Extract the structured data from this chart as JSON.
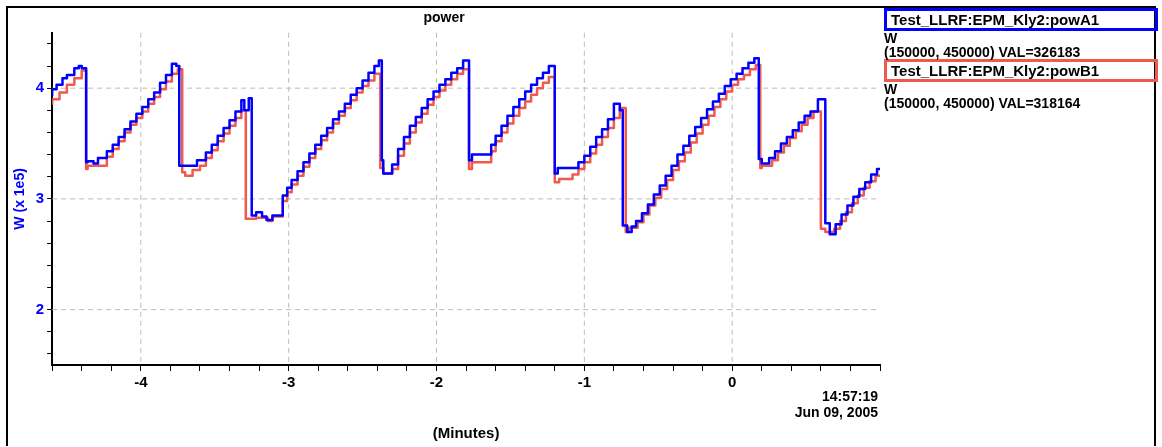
{
  "chart_data": {
    "type": "step",
    "title": "power",
    "xlabel": "(Minutes)",
    "ylabel": "W (x 1e5)",
    "xlim": [
      -4.6,
      1.0
    ],
    "ylim": [
      1.5,
      4.5
    ],
    "xticks": [
      {
        "value": -4.6,
        "label": null
      },
      {
        "value": -4.4,
        "label": null
      },
      {
        "value": -4.2,
        "label": null
      },
      -4,
      {
        "value": -3.8,
        "label": null
      },
      {
        "value": -3.6,
        "label": null
      },
      {
        "value": -3.4,
        "label": null
      },
      {
        "value": -3.2,
        "label": null
      },
      -3,
      {
        "value": -2.8,
        "label": null
      },
      {
        "value": -2.6,
        "label": null
      },
      {
        "value": -2.4,
        "label": null
      },
      {
        "value": -2.2,
        "label": null
      },
      -2,
      {
        "value": -1.8,
        "label": null
      },
      {
        "value": -1.6,
        "label": null
      },
      {
        "value": -1.4,
        "label": null
      },
      {
        "value": -1.2,
        "label": null
      },
      -1,
      {
        "value": -0.8,
        "label": null
      },
      {
        "value": -0.6,
        "label": null
      },
      {
        "value": -0.4,
        "label": null
      },
      {
        "value": -0.2,
        "label": null
      },
      0,
      {
        "value": 0.2,
        "label": null
      },
      {
        "value": 0.4,
        "label": null
      },
      {
        "value": 0.6,
        "label": null
      },
      {
        "value": 0.8,
        "label": null
      },
      {
        "value": 1.0,
        "label": null
      }
    ],
    "yticks": [
      {
        "value": 1.6,
        "label": null
      },
      {
        "value": 1.8,
        "label": null
      },
      2,
      {
        "value": 2.2,
        "label": null
      },
      {
        "value": 2.4,
        "label": null
      },
      {
        "value": 2.6,
        "label": null
      },
      {
        "value": 2.8,
        "label": null
      },
      3,
      {
        "value": 3.2,
        "label": null
      },
      {
        "value": 3.4,
        "label": null
      },
      {
        "value": 3.6,
        "label": null
      },
      {
        "value": 3.8,
        "label": null
      },
      4,
      {
        "value": 4.2,
        "label": null
      },
      {
        "value": 4.4,
        "label": null
      }
    ],
    "grid": true,
    "legend": "right",
    "annotations": [
      "W",
      "(150000, 450000) VAL=326183",
      "W",
      "(150000, 450000) VAL=318164",
      "14:57:19",
      "Jun 09, 2005"
    ],
    "series": [
      {
        "name": "Test_LLRF:EPM_Kly2:powA1",
        "color": "#0000ff",
        "x": [
          -4.6,
          -4.57,
          -4.53,
          -4.5,
          -4.45,
          -4.42,
          -4.4,
          -4.37,
          -4.36,
          -4.32,
          -4.29,
          -4.23,
          -4.19,
          -4.15,
          -4.11,
          -4.07,
          -4.03,
          -3.99,
          -3.95,
          -3.91,
          -3.87,
          -3.83,
          -3.79,
          -3.76,
          -3.74,
          -3.7,
          -3.62,
          -3.56,
          -3.52,
          -3.48,
          -3.44,
          -3.4,
          -3.36,
          -3.32,
          -3.3,
          -3.27,
          -3.25,
          -3.22,
          -3.18,
          -3.15,
          -3.11,
          -3.04,
          -3.01,
          -2.98,
          -2.94,
          -2.9,
          -2.86,
          -2.82,
          -2.78,
          -2.74,
          -2.7,
          -2.66,
          -2.62,
          -2.58,
          -2.54,
          -2.5,
          -2.46,
          -2.42,
          -2.39,
          -2.37,
          -2.36,
          -2.3,
          -2.26,
          -2.22,
          -2.18,
          -2.14,
          -2.1,
          -2.06,
          -2.02,
          -1.98,
          -1.94,
          -1.9,
          -1.86,
          -1.82,
          -1.78,
          -1.76,
          -1.63,
          -1.6,
          -1.56,
          -1.52,
          -1.48,
          -1.44,
          -1.4,
          -1.36,
          -1.32,
          -1.28,
          -1.24,
          -1.2,
          -1.18,
          -1.04,
          -1.0,
          -0.96,
          -0.92,
          -0.88,
          -0.84,
          -0.8,
          -0.76,
          -0.74,
          -0.71,
          -0.68,
          -0.65,
          -0.61,
          -0.57,
          -0.53,
          -0.49,
          -0.45,
          -0.41,
          -0.37,
          -0.33,
          -0.29,
          -0.25,
          -0.21,
          -0.17,
          -0.13,
          -0.09,
          -0.05,
          -0.01,
          0.03,
          0.07,
          0.11,
          0.15,
          0.18,
          0.2,
          0.25,
          0.29,
          0.33,
          0.37,
          0.41,
          0.45,
          0.49,
          0.53,
          0.58,
          0.63,
          0.66,
          0.7,
          0.74,
          0.78,
          0.82,
          0.86,
          0.9,
          0.94,
          0.98,
          1.0
        ],
        "values": [
          3.93,
          3.99,
          4.03,
          4.09,
          4.12,
          4.18,
          4.2,
          4.18,
          3.33,
          3.34,
          3.32,
          3.37,
          3.43,
          3.49,
          3.56,
          3.63,
          3.7,
          3.77,
          3.83,
          3.9,
          3.96,
          4.05,
          4.12,
          4.22,
          4.2,
          3.3,
          3.3,
          3.35,
          3.42,
          3.49,
          3.57,
          3.64,
          3.71,
          3.79,
          3.89,
          3.8,
          3.91,
          2.85,
          2.88,
          2.84,
          2.81,
          2.85,
          3.03,
          3.1,
          3.17,
          3.25,
          3.33,
          3.41,
          3.49,
          3.57,
          3.64,
          3.72,
          3.79,
          3.86,
          3.94,
          4.0,
          4.07,
          4.14,
          4.2,
          4.25,
          3.35,
          3.23,
          3.31,
          3.45,
          3.56,
          3.66,
          3.74,
          3.82,
          3.9,
          3.97,
          4.03,
          4.08,
          4.14,
          4.18,
          4.25,
          3.35,
          3.4,
          3.49,
          3.57,
          3.66,
          3.75,
          3.83,
          3.9,
          3.97,
          4.03,
          4.09,
          4.14,
          4.2,
          3.23,
          3.28,
          3.33,
          3.39,
          3.47,
          3.56,
          3.63,
          3.72,
          3.86,
          3.8,
          2.76,
          2.7,
          2.75,
          2.8,
          2.87,
          2.95,
          3.04,
          3.12,
          3.21,
          3.3,
          3.4,
          3.48,
          3.57,
          3.65,
          3.73,
          3.81,
          3.88,
          3.95,
          4.02,
          4.08,
          4.13,
          4.18,
          4.23,
          4.27,
          3.36,
          3.32,
          3.37,
          3.43,
          3.5,
          3.56,
          3.62,
          3.69,
          3.75,
          3.79,
          3.9,
          2.78,
          2.68,
          2.77,
          2.86,
          2.94,
          3.02,
          3.09,
          3.15,
          3.22,
          3.27
        ]
      },
      {
        "name": "Test_LLRF:EPM_Kly2:powB1",
        "color": "#ef5a4f",
        "x": [
          -4.6,
          -4.55,
          -4.5,
          -4.45,
          -4.4,
          -4.37,
          -4.36,
          -4.23,
          -4.19,
          -4.15,
          -4.11,
          -4.07,
          -4.03,
          -3.99,
          -3.95,
          -3.91,
          -3.87,
          -3.83,
          -3.79,
          -3.75,
          -3.72,
          -3.7,
          -3.65,
          -3.6,
          -3.56,
          -3.52,
          -3.48,
          -3.44,
          -3.4,
          -3.36,
          -3.32,
          -3.29,
          -3.22,
          -3.14,
          -3.11,
          -3.04,
          -3.01,
          -2.98,
          -2.94,
          -2.9,
          -2.86,
          -2.82,
          -2.78,
          -2.74,
          -2.7,
          -2.66,
          -2.62,
          -2.58,
          -2.54,
          -2.5,
          -2.46,
          -2.42,
          -2.38,
          -2.36,
          -2.3,
          -2.26,
          -2.22,
          -2.18,
          -2.14,
          -2.1,
          -2.06,
          -2.02,
          -1.98,
          -1.94,
          -1.9,
          -1.86,
          -1.82,
          -1.78,
          -1.76,
          -1.63,
          -1.6,
          -1.56,
          -1.52,
          -1.48,
          -1.44,
          -1.4,
          -1.36,
          -1.32,
          -1.28,
          -1.24,
          -1.2,
          -1.17,
          -1.08,
          -1.04,
          -1.0,
          -0.96,
          -0.92,
          -0.88,
          -0.84,
          -0.8,
          -0.76,
          -0.72,
          -0.7,
          -0.64,
          -0.6,
          -0.56,
          -0.52,
          -0.48,
          -0.44,
          -0.4,
          -0.36,
          -0.32,
          -0.28,
          -0.24,
          -0.2,
          -0.16,
          -0.12,
          -0.08,
          -0.04,
          0.0,
          0.04,
          0.08,
          0.12,
          0.16,
          0.19,
          0.2,
          0.27,
          0.31,
          0.35,
          0.39,
          0.43,
          0.47,
          0.51,
          0.55,
          0.6,
          0.63,
          0.69,
          0.73,
          0.77,
          0.81,
          0.85,
          0.89,
          0.93,
          0.97,
          1.0
        ],
        "values": [
          3.85,
          3.9,
          3.96,
          4.03,
          4.09,
          4.16,
          3.27,
          3.3,
          3.38,
          3.45,
          3.52,
          3.6,
          3.67,
          3.73,
          3.79,
          3.86,
          3.92,
          3.99,
          4.06,
          4.13,
          4.17,
          3.24,
          3.21,
          3.26,
          3.3,
          3.37,
          3.44,
          3.52,
          3.59,
          3.66,
          3.73,
          3.8,
          2.82,
          2.83,
          2.8,
          2.84,
          2.98,
          3.06,
          3.13,
          3.21,
          3.29,
          3.37,
          3.45,
          3.53,
          3.6,
          3.68,
          3.75,
          3.82,
          3.89,
          3.96,
          4.02,
          4.07,
          4.13,
          3.28,
          3.23,
          3.27,
          3.39,
          3.5,
          3.6,
          3.69,
          3.77,
          3.85,
          3.92,
          3.98,
          4.03,
          4.08,
          4.13,
          4.17,
          3.27,
          3.33,
          3.43,
          3.52,
          3.6,
          3.68,
          3.75,
          3.82,
          3.88,
          3.94,
          4.0,
          4.05,
          4.1,
          3.15,
          3.18,
          3.22,
          3.27,
          3.33,
          3.41,
          3.49,
          3.56,
          3.64,
          3.73,
          3.82,
          2.7,
          2.74,
          2.79,
          2.86,
          2.94,
          3.01,
          3.09,
          3.17,
          3.26,
          3.34,
          3.42,
          3.51,
          3.59,
          3.67,
          3.75,
          3.83,
          3.9,
          3.97,
          4.03,
          4.08,
          4.12,
          4.17,
          4.21,
          3.28,
          3.3,
          3.35,
          3.42,
          3.48,
          3.55,
          3.61,
          3.67,
          3.73,
          3.79,
          2.73,
          2.7,
          2.73,
          2.8,
          2.88,
          2.96,
          3.03,
          3.1,
          3.16,
          3.21
        ]
      }
    ]
  }
}
